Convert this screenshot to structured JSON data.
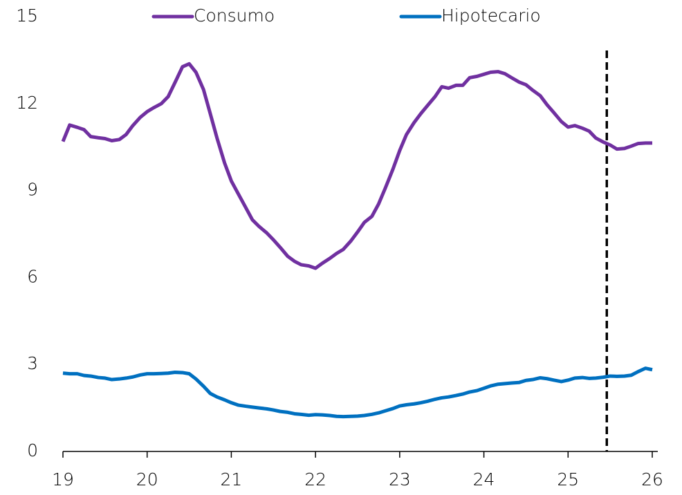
{
  "chart_data": {
    "type": "line",
    "x": [
      19,
      19.08,
      19.17,
      19.25,
      19.33,
      19.42,
      19.5,
      19.58,
      19.67,
      19.75,
      19.83,
      19.92,
      20,
      20.08,
      20.17,
      20.25,
      20.33,
      20.42,
      20.5,
      20.58,
      20.67,
      20.75,
      20.83,
      20.92,
      21,
      21.08,
      21.17,
      21.25,
      21.33,
      21.42,
      21.5,
      21.58,
      21.67,
      21.75,
      21.83,
      21.92,
      22,
      22.08,
      22.17,
      22.25,
      22.33,
      22.42,
      22.5,
      22.58,
      22.67,
      22.75,
      22.83,
      22.92,
      23,
      23.08,
      23.17,
      23.25,
      23.33,
      23.42,
      23.5,
      23.58,
      23.67,
      23.75,
      23.83,
      23.92,
      24,
      24.08,
      24.17,
      24.25,
      24.33,
      24.42,
      24.5,
      24.58,
      24.67,
      24.75,
      24.83,
      24.92,
      25,
      25.08,
      25.17,
      25.25,
      25.33,
      25.42,
      25.5,
      25.58,
      25.67,
      25.75,
      25.83,
      25.92,
      26
    ],
    "series": [
      {
        "name": "Consumo",
        "color": "#7030a0",
        "values": [
          10.69,
          11.26,
          11.18,
          11.1,
          10.86,
          10.82,
          10.79,
          10.72,
          10.76,
          10.93,
          11.24,
          11.53,
          11.72,
          11.86,
          12.0,
          12.24,
          12.72,
          13.27,
          13.37,
          13.08,
          12.48,
          11.65,
          10.81,
          9.95,
          9.33,
          8.9,
          8.42,
          7.99,
          7.76,
          7.54,
          7.3,
          7.04,
          6.73,
          6.56,
          6.44,
          6.4,
          6.32,
          6.49,
          6.66,
          6.83,
          6.97,
          7.26,
          7.57,
          7.9,
          8.11,
          8.54,
          9.09,
          9.74,
          10.38,
          10.93,
          11.34,
          11.65,
          11.93,
          12.24,
          12.58,
          12.53,
          12.63,
          12.63,
          12.89,
          12.94,
          13.01,
          13.08,
          13.1,
          13.03,
          12.89,
          12.74,
          12.65,
          12.46,
          12.27,
          11.96,
          11.69,
          11.38,
          11.19,
          11.24,
          11.15,
          11.05,
          10.81,
          10.67,
          10.57,
          10.43,
          10.45,
          10.53,
          10.62,
          10.64,
          10.64
        ]
      },
      {
        "name": "Hipotecario",
        "color": "#0070c0",
        "values": [
          2.7,
          2.68,
          2.68,
          2.62,
          2.6,
          2.55,
          2.53,
          2.48,
          2.5,
          2.53,
          2.57,
          2.64,
          2.68,
          2.68,
          2.69,
          2.7,
          2.73,
          2.72,
          2.68,
          2.5,
          2.25,
          2.0,
          1.88,
          1.78,
          1.68,
          1.6,
          1.56,
          1.53,
          1.5,
          1.47,
          1.43,
          1.38,
          1.35,
          1.3,
          1.28,
          1.25,
          1.27,
          1.26,
          1.24,
          1.21,
          1.2,
          1.21,
          1.22,
          1.24,
          1.28,
          1.33,
          1.4,
          1.48,
          1.57,
          1.61,
          1.64,
          1.68,
          1.73,
          1.8,
          1.85,
          1.88,
          1.93,
          1.98,
          2.05,
          2.1,
          2.18,
          2.26,
          2.32,
          2.34,
          2.36,
          2.38,
          2.45,
          2.48,
          2.54,
          2.51,
          2.46,
          2.41,
          2.46,
          2.53,
          2.55,
          2.52,
          2.53,
          2.56,
          2.6,
          2.59,
          2.6,
          2.63,
          2.75,
          2.87,
          2.82
        ]
      }
    ],
    "xlim": [
      19,
      26
    ],
    "xticks": [
      19,
      20,
      21,
      22,
      23,
      24,
      25,
      26
    ],
    "ylim": [
      0,
      15
    ],
    "yticks": [
      0,
      3,
      6,
      9,
      12,
      15
    ],
    "vline": 25.46,
    "legend": "top",
    "grid": false
  }
}
